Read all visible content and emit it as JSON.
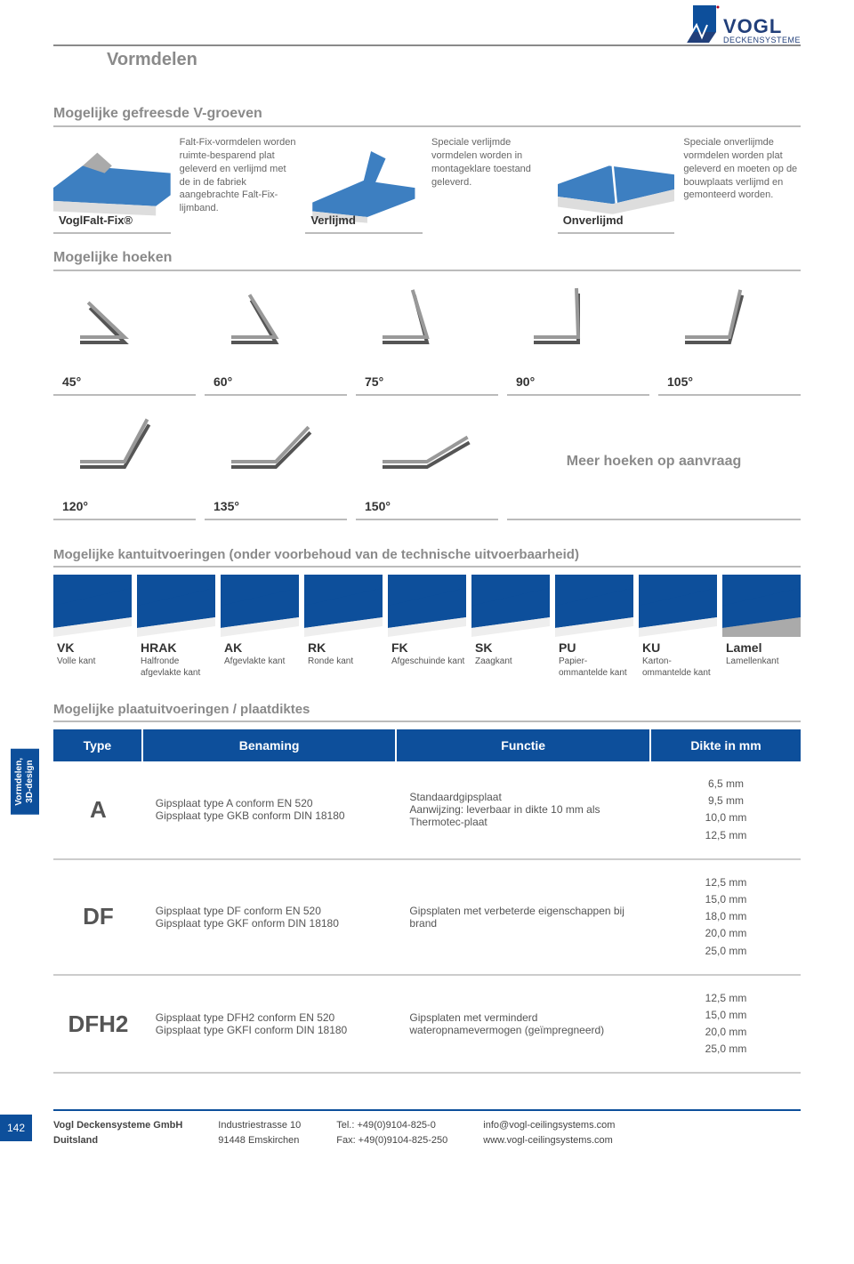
{
  "header": {
    "title": "Vormdelen"
  },
  "logo": {
    "brand": "VOGL",
    "sub": "DECKENSYSTEME",
    "colors": {
      "blue": "#0d4f9b",
      "dark": "#213f7a",
      "red": "#b00020"
    }
  },
  "section1": {
    "title": "Mogelijke gefreesde V-groeven",
    "items": [
      {
        "label": "VoglFalt-Fix®",
        "desc": "Falt-Fix-vormdelen worden ruimte-besparend plat geleverd en verlijmd met de in de fabriek aangebrachte Falt-Fix-lijmband.",
        "blue": "#3d7fc1"
      },
      {
        "label": "Verlijmd",
        "desc": "Speciale verlijmde vormdelen worden in montageklare toestand geleverd.",
        "blue": "#3d7fc1"
      },
      {
        "label": "Onverlijmd",
        "desc": "Speciale onverlijmde vormdelen worden plat geleverd en moeten op de bouwplaats verlijmd en gemonteerd worden.",
        "blue": "#3d7fc1"
      }
    ]
  },
  "section2": {
    "title": "Mogelijke hoeken",
    "angles_row1": [
      "45°",
      "60°",
      "75°",
      "90°",
      "105°"
    ],
    "angles_row2": [
      "120°",
      "135°",
      "150°"
    ],
    "more": "Meer hoeken op aanvraag",
    "stroke": "#555"
  },
  "section3": {
    "title": "Mogelijke kantuitvoeringen (onder voorbehoud van de technische uitvoerbaarheid)",
    "edges": [
      {
        "code": "VK",
        "desc": "Volle kant"
      },
      {
        "code": "HRAK",
        "desc": "Halfronde afgevlakte kant"
      },
      {
        "code": "AK",
        "desc": "Afgevlakte kant"
      },
      {
        "code": "RK",
        "desc": "Ronde kant"
      },
      {
        "code": "FK",
        "desc": "Afgeschuinde kant"
      },
      {
        "code": "SK",
        "desc": "Zaagkant"
      },
      {
        "code": "PU",
        "desc": "Papier-ommantelde kant"
      },
      {
        "code": "KU",
        "desc": "Karton-ommantelde kant"
      },
      {
        "code": "Lamel",
        "desc": "Lamellenkant"
      }
    ],
    "bg_blue": "#0d4f9b"
  },
  "sidetab": "Vormdelen,\n3D-design",
  "section4": {
    "title": "Mogelijke plaatuitvoeringen / plaatdiktes",
    "headers": [
      "Type",
      "Benaming",
      "Functie",
      "Dikte in mm"
    ],
    "rows": [
      {
        "type": "A",
        "benaming": "Gipsplaat type A conform EN 520\nGipsplaat type GKB conform DIN 18180",
        "functie": "Standaardgipsplaat\nAanwijzing: leverbaar in dikte 10 mm als Thermotec-plaat",
        "dikte": "6,5 mm\n9,5 mm\n10,0 mm\n12,5 mm"
      },
      {
        "type": "DF",
        "benaming": "Gipsplaat type DF conform EN 520\nGipsplaat type GKF onform DIN 18180",
        "functie": "Gipsplaten met verbeterde eigenschappen bij brand",
        "dikte": "12,5 mm\n15,0 mm\n18,0 mm\n20,0 mm\n25,0 mm"
      },
      {
        "type": "DFH2",
        "benaming": "Gipsplaat type DFH2 conform EN 520\nGipsplaat type GKFI conform DIN 18180",
        "functie": "Gipsplaten met verminderd wateropnamevermogen (geïmpregneerd)",
        "dikte": "12,5 mm\n15,0 mm\n20,0 mm\n25,0 mm"
      }
    ],
    "header_bg": "#0d4f9b"
  },
  "footer": {
    "page": "142",
    "col1": "Vogl Deckensysteme GmbH\nDuitsland",
    "col2": "Industriestrasse 10\n91448 Emskirchen",
    "col3": "Tel.: +49(0)9104-825-0\nFax: +49(0)9104-825-250",
    "col4": "info@vogl-ceilingsystems.com\nwww.vogl-ceilingsystems.com"
  }
}
